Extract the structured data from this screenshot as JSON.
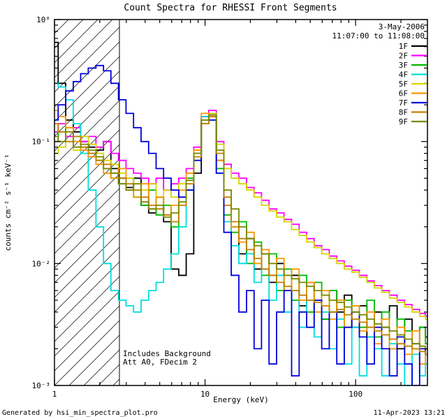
{
  "chart_data": {
    "type": "line",
    "title": "Count Spectra for RHESSI Front Segments",
    "xlabel": "Energy (keV)",
    "ylabel": "counts cm⁻² s⁻¹ keV⁻¹",
    "xscale": "log",
    "yscale": "log",
    "xlim": [
      1,
      300
    ],
    "ylim": [
      0.001,
      1
    ],
    "grid": false,
    "legend_position": "top-right",
    "date": "3-May-2006",
    "time_range": "11:07:00 to 11:08:00",
    "annotations": [
      "Includes Background",
      "Att A0, FDecim 2"
    ],
    "hatch_region": [
      1,
      2.7
    ],
    "xticks": [
      {
        "v": 1,
        "label": "1"
      },
      {
        "v": 10,
        "label": "10"
      },
      {
        "v": 100,
        "label": "100"
      }
    ],
    "yticks": [
      {
        "v": 1,
        "label": "10⁰"
      },
      {
        "v": 0.1,
        "label": "10⁻¹"
      },
      {
        "v": 0.01,
        "label": "10⁻²"
      },
      {
        "v": 0.001,
        "label": "10⁻³"
      }
    ],
    "energies": [
      1.0,
      1.12,
      1.26,
      1.41,
      1.58,
      1.78,
      2.0,
      2.24,
      2.51,
      2.82,
      3.16,
      3.55,
      3.98,
      4.47,
      5.01,
      5.62,
      6.31,
      7.08,
      7.94,
      8.91,
      10.0,
      11.2,
      12.6,
      14.1,
      15.8,
      17.8,
      20.0,
      22.4,
      25.1,
      28.2,
      31.6,
      35.5,
      39.8,
      44.7,
      50.1,
      56.2,
      63.1,
      70.8,
      79.4,
      89.1,
      100,
      112,
      126,
      141,
      158,
      178,
      200,
      224,
      251,
      282,
      300
    ],
    "series": [
      {
        "name": "1F",
        "color": "#000000",
        "values": [
          0.65,
          0.3,
          0.15,
          0.12,
          0.1,
          0.09,
          0.085,
          0.1,
          0.06,
          0.05,
          0.042,
          0.05,
          0.03,
          0.026,
          0.035,
          0.022,
          0.009,
          0.008,
          0.012,
          0.055,
          0.16,
          0.17,
          0.07,
          0.03,
          0.02,
          0.012,
          0.016,
          0.009,
          0.012,
          0.007,
          0.01,
          0.006,
          0.008,
          0.0045,
          0.007,
          0.005,
          0.0035,
          0.006,
          0.004,
          0.0055,
          0.003,
          0.0045,
          0.0025,
          0.004,
          0.003,
          0.0045,
          0.002,
          0.0035,
          0.0022,
          0.003,
          0.0025
        ]
      },
      {
        "name": "2F",
        "color": "#ff00ff",
        "values": [
          0.12,
          0.14,
          0.11,
          0.13,
          0.1,
          0.11,
          0.09,
          0.1,
          0.08,
          0.07,
          0.06,
          0.055,
          0.05,
          0.045,
          0.05,
          0.04,
          0.045,
          0.05,
          0.06,
          0.09,
          0.16,
          0.18,
          0.1,
          0.065,
          0.055,
          0.05,
          0.042,
          0.038,
          0.033,
          0.028,
          0.026,
          0.023,
          0.021,
          0.018,
          0.016,
          0.014,
          0.013,
          0.0115,
          0.0105,
          0.0095,
          0.0088,
          0.008,
          0.0072,
          0.0066,
          0.006,
          0.0055,
          0.005,
          0.0046,
          0.0042,
          0.0039,
          0.0037
        ]
      },
      {
        "name": "3F",
        "color": "#00bb00",
        "values": [
          0.1,
          0.12,
          0.13,
          0.11,
          0.09,
          0.08,
          0.07,
          0.06,
          0.05,
          0.045,
          0.05,
          0.035,
          0.03,
          0.04,
          0.025,
          0.03,
          0.02,
          0.035,
          0.05,
          0.08,
          0.15,
          0.16,
          0.06,
          0.025,
          0.018,
          0.022,
          0.01,
          0.015,
          0.008,
          0.012,
          0.006,
          0.009,
          0.005,
          0.008,
          0.004,
          0.007,
          0.0035,
          0.006,
          0.003,
          0.005,
          0.0045,
          0.003,
          0.005,
          0.0025,
          0.004,
          0.002,
          0.0035,
          0.0028,
          0.002,
          0.003,
          0.0022
        ]
      },
      {
        "name": "4F",
        "color": "#00dede",
        "values": [
          0.3,
          0.28,
          0.22,
          0.14,
          0.08,
          0.04,
          0.02,
          0.01,
          0.006,
          0.005,
          0.0045,
          0.004,
          0.005,
          0.006,
          0.007,
          0.009,
          0.012,
          0.02,
          0.04,
          0.08,
          0.16,
          0.15,
          0.055,
          0.022,
          0.014,
          0.01,
          0.012,
          0.007,
          0.009,
          0.005,
          0.008,
          0.004,
          0.006,
          0.003,
          0.005,
          0.0025,
          0.004,
          0.002,
          0.0035,
          0.0015,
          0.003,
          0.0012,
          0.0025,
          0.002,
          0.0012,
          0.0022,
          0.0015,
          0.001,
          0.0018,
          0.0012,
          0.0015
        ]
      },
      {
        "name": "5F",
        "color": "#d6d600",
        "values": [
          0.08,
          0.09,
          0.1,
          0.085,
          0.11,
          0.095,
          0.08,
          0.07,
          0.065,
          0.055,
          0.05,
          0.045,
          0.04,
          0.045,
          0.035,
          0.04,
          0.035,
          0.045,
          0.055,
          0.085,
          0.15,
          0.17,
          0.095,
          0.06,
          0.05,
          0.045,
          0.04,
          0.035,
          0.03,
          0.027,
          0.024,
          0.022,
          0.019,
          0.017,
          0.015,
          0.0135,
          0.012,
          0.011,
          0.01,
          0.009,
          0.0085,
          0.0077,
          0.007,
          0.0063,
          0.0058,
          0.0052,
          0.0048,
          0.0044,
          0.004,
          0.0037,
          0.0035
        ]
      },
      {
        "name": "6F",
        "color": "#ff9500",
        "values": [
          0.18,
          0.16,
          0.13,
          0.1,
          0.085,
          0.075,
          0.065,
          0.055,
          0.05,
          0.06,
          0.04,
          0.035,
          0.045,
          0.028,
          0.035,
          0.025,
          0.03,
          0.04,
          0.055,
          0.085,
          0.17,
          0.16,
          0.07,
          0.03,
          0.02,
          0.015,
          0.018,
          0.01,
          0.013,
          0.008,
          0.011,
          0.006,
          0.009,
          0.005,
          0.007,
          0.004,
          0.006,
          0.0035,
          0.005,
          0.003,
          0.0045,
          0.0028,
          0.004,
          0.0022,
          0.0035,
          0.002,
          0.003,
          0.0018,
          0.0028,
          0.0015,
          0.002
        ]
      },
      {
        "name": "7F",
        "color": "#0000dd",
        "values": [
          0.15,
          0.2,
          0.26,
          0.31,
          0.36,
          0.4,
          0.42,
          0.38,
          0.3,
          0.22,
          0.17,
          0.13,
          0.1,
          0.08,
          0.06,
          0.05,
          0.04,
          0.035,
          0.04,
          0.07,
          0.14,
          0.15,
          0.055,
          0.018,
          0.008,
          0.004,
          0.006,
          0.002,
          0.005,
          0.0015,
          0.004,
          0.006,
          0.0012,
          0.004,
          0.003,
          0.005,
          0.002,
          0.004,
          0.0015,
          0.003,
          0.004,
          0.0025,
          0.0015,
          0.003,
          0.002,
          0.0012,
          0.0025,
          0.0015,
          0.001,
          0.002,
          0.0018
        ]
      },
      {
        "name": "8F",
        "color": "#c08000",
        "values": [
          0.14,
          0.12,
          0.1,
          0.11,
          0.09,
          0.08,
          0.07,
          0.065,
          0.055,
          0.05,
          0.045,
          0.04,
          0.035,
          0.03,
          0.028,
          0.025,
          0.022,
          0.03,
          0.045,
          0.075,
          0.14,
          0.16,
          0.08,
          0.035,
          0.022,
          0.016,
          0.013,
          0.011,
          0.009,
          0.008,
          0.007,
          0.0065,
          0.006,
          0.0055,
          0.005,
          0.0048,
          0.0045,
          0.004,
          0.0042,
          0.0038,
          0.0035,
          0.0033,
          0.003,
          0.0028,
          0.0026,
          0.0024,
          0.0022,
          0.0021,
          0.002,
          0.0019,
          0.0018
        ]
      },
      {
        "name": "9F",
        "color": "#7a8a00",
        "values": [
          0.11,
          0.1,
          0.12,
          0.09,
          0.095,
          0.085,
          0.075,
          0.06,
          0.055,
          0.045,
          0.04,
          0.045,
          0.032,
          0.028,
          0.03,
          0.024,
          0.026,
          0.032,
          0.048,
          0.08,
          0.15,
          0.165,
          0.085,
          0.04,
          0.028,
          0.02,
          0.016,
          0.014,
          0.012,
          0.01,
          0.009,
          0.008,
          0.0075,
          0.007,
          0.0065,
          0.006,
          0.0055,
          0.005,
          0.0048,
          0.0044,
          0.004,
          0.0038,
          0.0035,
          0.0032,
          0.003,
          0.0028,
          0.0026,
          0.0024,
          0.0022,
          0.0021,
          0.002
        ]
      }
    ]
  },
  "footer": {
    "left": "Generated by hsi_min_spectra_plot.pro",
    "right": "11-Apr-2023 13:21"
  }
}
